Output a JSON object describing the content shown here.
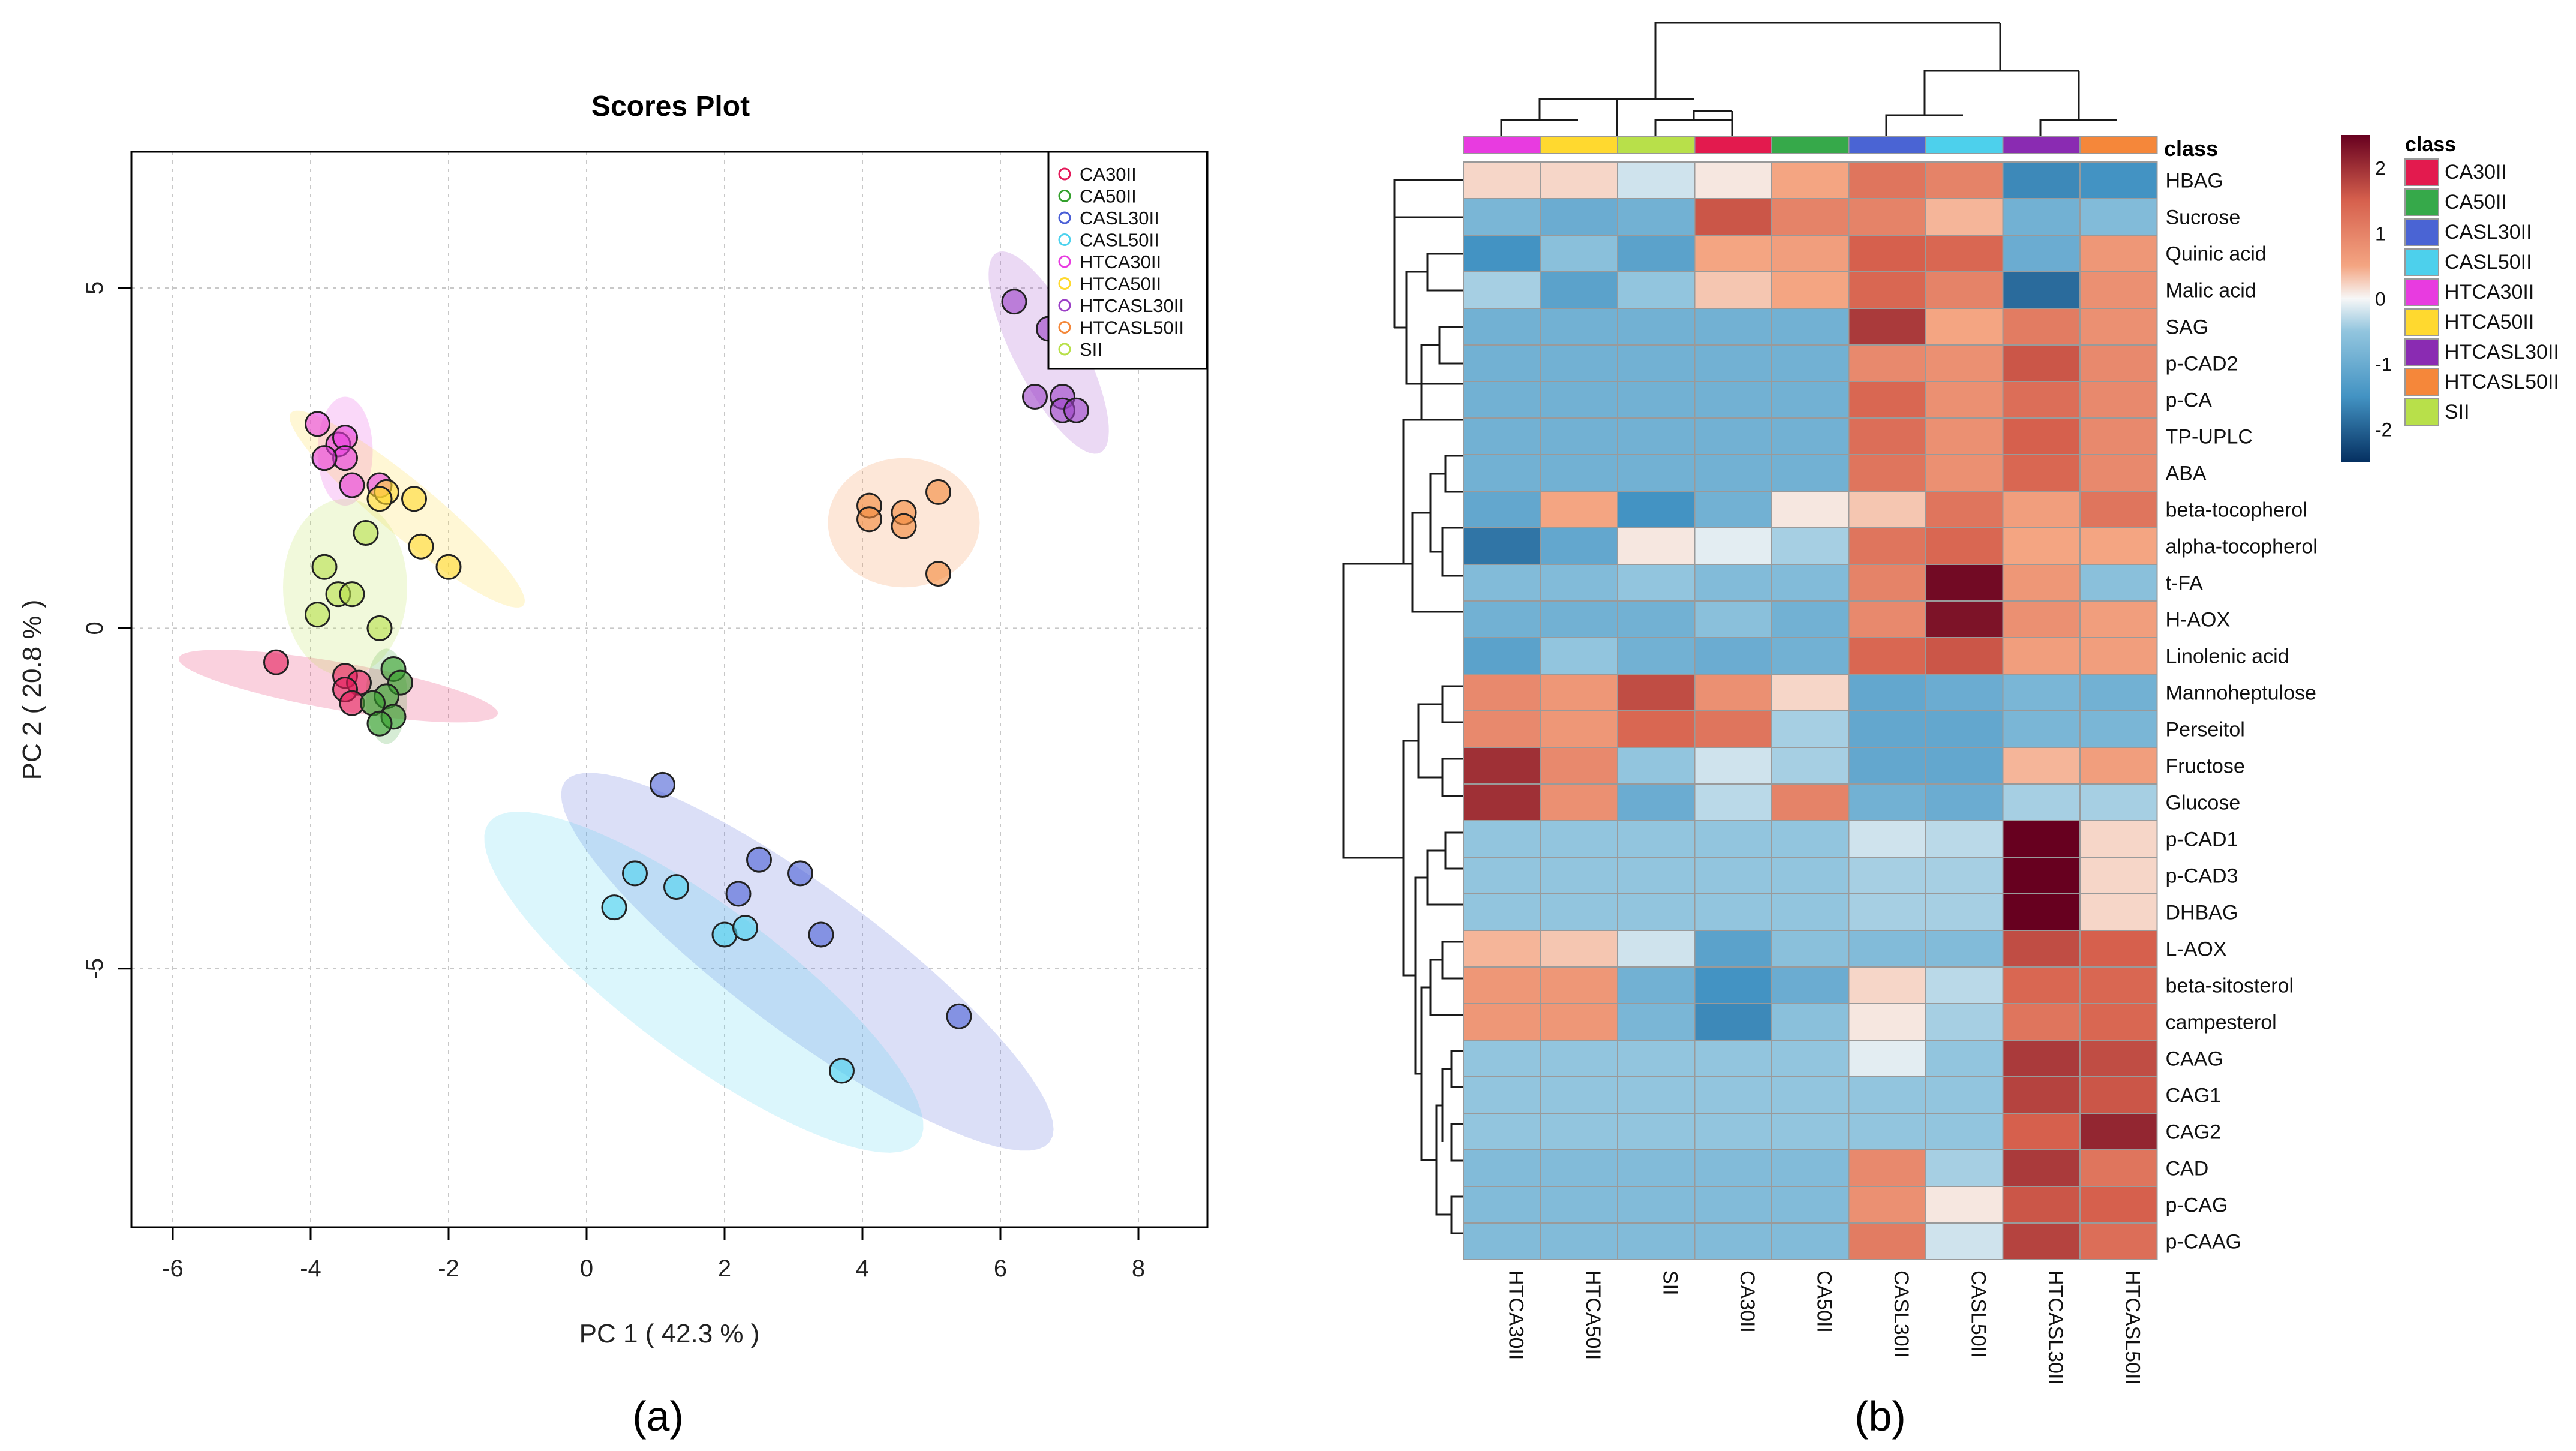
{
  "panels": {
    "a_label": "(a)",
    "b_label": "(b)"
  },
  "chart_data": [
    {
      "type": "scatter",
      "title": "Scores Plot",
      "xlabel": "PC 1 ( 42.3 % )",
      "ylabel": "PC 2 ( 20.8 % )",
      "xlim": [
        -6.6,
        9.0
      ],
      "ylim": [
        -8.8,
        7.0
      ],
      "xticks": [
        -6,
        -4,
        -2,
        0,
        2,
        4,
        6,
        8
      ],
      "yticks": [
        -5,
        0,
        5
      ],
      "grid": true,
      "legend_position": "top-right",
      "series": [
        {
          "name": "CA30II",
          "color": "#e41a5a",
          "points": [
            [
              -4.5,
              -0.5
            ],
            [
              -3.5,
              -0.7
            ],
            [
              -3.3,
              -0.8
            ],
            [
              -3.5,
              -0.9
            ],
            [
              -3.4,
              -1.1
            ]
          ],
          "ellipse": {
            "cx": -3.6,
            "cy": -0.85,
            "rx": 2.35,
            "ry": 0.35,
            "angle": -10
          }
        },
        {
          "name": "CA50II",
          "color": "#33a02c",
          "points": [
            [
              -2.8,
              -0.6
            ],
            [
              -2.7,
              -0.8
            ],
            [
              -2.9,
              -1.0
            ],
            [
              -3.1,
              -1.1
            ],
            [
              -2.8,
              -1.3
            ],
            [
              -3.0,
              -1.4
            ]
          ],
          "ellipse": {
            "cx": -2.9,
            "cy": -1.0,
            "rx": 0.3,
            "ry": 0.7,
            "angle": 0
          }
        },
        {
          "name": "CASL30II",
          "color": "#4a5fd6",
          "points": [
            [
              1.1,
              -2.3
            ],
            [
              2.5,
              -3.4
            ],
            [
              3.1,
              -3.6
            ],
            [
              2.2,
              -3.9
            ],
            [
              3.4,
              -4.5
            ],
            [
              5.4,
              -5.7
            ]
          ],
          "ellipse": {
            "cx": 3.2,
            "cy": -4.9,
            "rx": 4.4,
            "ry": 1.05,
            "angle": -37
          }
        },
        {
          "name": "CASL50II",
          "color": "#4dd2ee",
          "points": [
            [
              0.7,
              -3.6
            ],
            [
              1.3,
              -3.8
            ],
            [
              0.4,
              -4.1
            ],
            [
              2.0,
              -4.5
            ],
            [
              2.3,
              -4.4
            ],
            [
              3.7,
              -6.5
            ]
          ],
          "ellipse": {
            "cx": 1.7,
            "cy": -5.2,
            "rx": 3.9,
            "ry": 1.1,
            "angle": -37
          }
        },
        {
          "name": "HTCA30II",
          "color": "#e83be0",
          "points": [
            [
              -3.9,
              3.0
            ],
            [
              -3.6,
              2.7
            ],
            [
              -3.5,
              2.8
            ],
            [
              -3.5,
              2.5
            ],
            [
              -3.8,
              2.5
            ],
            [
              -3.4,
              2.1
            ],
            [
              -3.0,
              2.1
            ]
          ],
          "ellipse": {
            "cx": -3.5,
            "cy": 2.6,
            "rx": 0.4,
            "ry": 0.8,
            "angle": 0
          }
        },
        {
          "name": "HTCA50II",
          "color": "#ffd92f",
          "points": [
            [
              -2.9,
              2.0
            ],
            [
              -2.5,
              1.9
            ],
            [
              -3.0,
              1.9
            ],
            [
              -2.4,
              1.2
            ],
            [
              -2.0,
              0.9
            ]
          ],
          "ellipse": {
            "cx": -2.6,
            "cy": 1.75,
            "rx": 2.2,
            "ry": 0.4,
            "angle": -40
          }
        },
        {
          "name": "HTCASL30II",
          "color": "#9b3fc6",
          "points": [
            [
              6.2,
              4.8
            ],
            [
              6.7,
              4.4
            ],
            [
              6.5,
              3.4
            ],
            [
              6.9,
              3.4
            ],
            [
              6.9,
              3.2
            ],
            [
              7.1,
              3.2
            ]
          ],
          "ellipse": {
            "cx": 6.7,
            "cy": 4.05,
            "rx": 1.65,
            "ry": 0.5,
            "angle": -63
          }
        },
        {
          "name": "HTCASL50II",
          "color": "#f4883a",
          "points": [
            [
              4.1,
              1.8
            ],
            [
              4.6,
              1.7
            ],
            [
              5.1,
              2.0
            ],
            [
              4.1,
              1.6
            ],
            [
              4.6,
              1.5
            ],
            [
              5.1,
              0.8
            ]
          ],
          "ellipse": {
            "cx": 4.6,
            "cy": 1.55,
            "rx": 1.1,
            "ry": 0.95,
            "angle": 0
          }
        },
        {
          "name": "SII",
          "color": "#b8e04a",
          "points": [
            [
              -3.8,
              0.9
            ],
            [
              -3.2,
              1.4
            ],
            [
              -3.6,
              0.5
            ],
            [
              -3.4,
              0.5
            ],
            [
              -3.9,
              0.2
            ],
            [
              -3.0,
              0.0
            ]
          ],
          "ellipse": {
            "cx": -3.5,
            "cy": 0.6,
            "rx": 0.9,
            "ry": 1.3,
            "angle": 0
          }
        }
      ]
    },
    {
      "type": "heatmap",
      "legend_title": "class",
      "class_row_label": "class",
      "columns": [
        "HTCA30II",
        "HTCA50II",
        "SII",
        "CA30II",
        "CA50II",
        "CASL30II",
        "CASL50II",
        "HTCASL30II",
        "HTCASL50II"
      ],
      "column_classes": [
        "HTCA30II",
        "HTCA50II",
        "SII",
        "CA30II",
        "CA50II",
        "CASL30II",
        "CASL50II",
        "HTCASL30II",
        "HTCASL50II"
      ],
      "class_legend": [
        {
          "name": "CA30II",
          "color": "#e31a4e"
        },
        {
          "name": "CA50II",
          "color": "#36a94a"
        },
        {
          "name": "CASL30II",
          "color": "#4a64d4"
        },
        {
          "name": "CASL50II",
          "color": "#4dd0ec"
        },
        {
          "name": "HTCA30II",
          "color": "#e83be0"
        },
        {
          "name": "HTCA50II",
          "color": "#ffd92f"
        },
        {
          "name": "HTCASL30II",
          "color": "#8a2bb2"
        },
        {
          "name": "HTCASL50II",
          "color": "#f5873a"
        },
        {
          "name": "SII",
          "color": "#b8e04a"
        }
      ],
      "colorbar": {
        "min": -2.5,
        "max": 2.5,
        "ticks": [
          2,
          1,
          0,
          -1,
          -2
        ]
      },
      "rows": [
        "HBAG",
        "Sucrose",
        "Quinic acid",
        "Malic acid",
        "SAG",
        "p-CAD2",
        "p-CA",
        "TP-UPLC",
        "ABA",
        "beta-tocopherol",
        "alpha-tocopherol",
        "t-FA",
        "H-AOX",
        "Linolenic acid",
        "Mannoheptulose",
        "Perseitol",
        "Fructose",
        "Glucose",
        "p-CAD1",
        "p-CAD3",
        "DHBAG",
        "L-AOX",
        "beta-sitosterol",
        "campesterol",
        "CAAG",
        "CAG1",
        "CAG2",
        "CAD",
        "p-CAG",
        "p-CAAG"
      ],
      "values": [
        [
          0.2,
          0.2,
          -0.2,
          0.1,
          0.5,
          1.2,
          1.0,
          -1.6,
          -1.5
        ],
        [
          -0.8,
          -1.0,
          -0.9,
          1.6,
          1.0,
          1.0,
          0.4,
          -0.9,
          -0.7
        ],
        [
          -1.5,
          -0.6,
          -1.2,
          0.5,
          0.6,
          1.5,
          1.4,
          -1.0,
          0.7
        ],
        [
          -0.4,
          -1.2,
          -0.5,
          0.3,
          0.5,
          1.4,
          1.0,
          -1.9,
          0.8
        ],
        [
          -0.9,
          -0.9,
          -0.9,
          -0.9,
          -0.9,
          1.9,
          0.5,
          1.1,
          0.8
        ],
        [
          -0.9,
          -0.9,
          -0.9,
          -0.9,
          -0.9,
          0.9,
          0.8,
          1.6,
          0.9
        ],
        [
          -0.9,
          -0.9,
          -0.9,
          -0.9,
          -0.9,
          1.4,
          0.8,
          1.3,
          0.9
        ],
        [
          -0.9,
          -0.9,
          -0.9,
          -0.9,
          -0.9,
          1.3,
          0.8,
          1.5,
          0.9
        ],
        [
          -0.9,
          -0.9,
          -0.9,
          -0.9,
          -0.9,
          1.2,
          0.8,
          1.4,
          0.9
        ],
        [
          -1.1,
          0.5,
          -1.5,
          -0.9,
          0.1,
          0.3,
          1.2,
          0.6,
          1.2
        ],
        [
          -1.8,
          -1.1,
          0.1,
          -0.1,
          -0.4,
          1.2,
          1.4,
          0.5,
          0.5
        ],
        [
          -0.7,
          -0.7,
          -0.5,
          -0.7,
          -0.7,
          1.0,
          2.4,
          0.7,
          -0.6
        ],
        [
          -0.9,
          -0.9,
          -0.9,
          -0.6,
          -0.9,
          0.9,
          2.3,
          0.8,
          0.6
        ],
        [
          -1.2,
          -0.5,
          -0.9,
          -1.0,
          -0.9,
          1.4,
          1.6,
          0.6,
          0.6
        ],
        [
          0.9,
          0.7,
          1.7,
          0.8,
          0.2,
          -1.1,
          -1.0,
          -0.8,
          -0.9
        ],
        [
          0.9,
          0.7,
          1.4,
          1.2,
          -0.4,
          -1.1,
          -1.1,
          -0.8,
          -0.8
        ],
        [
          2.0,
          0.9,
          -0.5,
          -0.2,
          -0.4,
          -1.1,
          -1.1,
          0.4,
          0.6
        ],
        [
          2.0,
          0.8,
          -1.0,
          -0.3,
          1.0,
          -0.9,
          -1.0,
          -0.4,
          -0.4
        ],
        [
          -0.5,
          -0.5,
          -0.5,
          -0.5,
          -0.5,
          -0.2,
          -0.3,
          2.5,
          0.2
        ],
        [
          -0.5,
          -0.5,
          -0.5,
          -0.5,
          -0.5,
          -0.4,
          -0.4,
          2.5,
          0.2
        ],
        [
          -0.5,
          -0.5,
          -0.5,
          -0.5,
          -0.5,
          -0.4,
          -0.4,
          2.5,
          0.2
        ],
        [
          0.4,
          0.3,
          -0.2,
          -1.2,
          -0.6,
          -0.7,
          -0.7,
          1.7,
          1.5
        ],
        [
          0.7,
          0.7,
          -0.9,
          -1.5,
          -1.0,
          0.2,
          -0.3,
          1.4,
          1.4
        ],
        [
          0.7,
          0.7,
          -0.8,
          -1.6,
          -0.6,
          0.1,
          -0.4,
          1.2,
          1.4
        ],
        [
          -0.5,
          -0.5,
          -0.5,
          -0.5,
          -0.5,
          -0.1,
          -0.5,
          1.9,
          1.7
        ],
        [
          -0.5,
          -0.5,
          -0.5,
          -0.5,
          -0.5,
          -0.5,
          -0.5,
          1.8,
          1.6
        ],
        [
          -0.5,
          -0.5,
          -0.5,
          -0.5,
          -0.5,
          -0.5,
          -0.5,
          1.5,
          2.1
        ],
        [
          -0.7,
          -0.7,
          -0.7,
          -0.7,
          -0.7,
          0.9,
          -0.4,
          1.9,
          1.2
        ],
        [
          -0.7,
          -0.7,
          -0.7,
          -0.7,
          -0.7,
          0.8,
          0.1,
          1.6,
          1.5
        ],
        [
          -0.7,
          -0.7,
          -0.7,
          -0.7,
          -0.7,
          1.1,
          -0.2,
          1.8,
          1.3
        ]
      ]
    }
  ]
}
